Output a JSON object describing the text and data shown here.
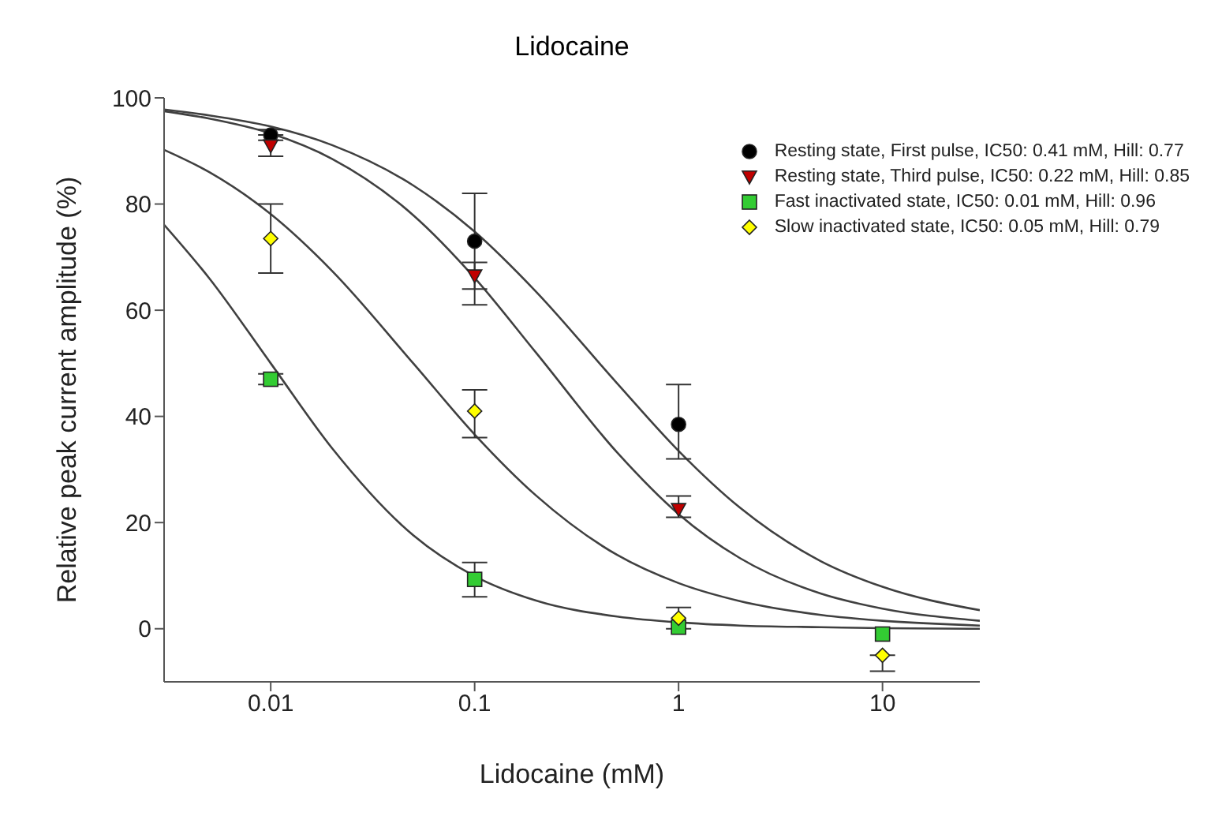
{
  "chart_data": {
    "type": "scatter",
    "title": "Lidocaine",
    "xlabel": "Lidocaine (mM)",
    "ylabel": "Relative peak current amplitude (%)",
    "log": "x",
    "xlim": [
      0.003,
      30
    ],
    "xticks": [
      0.01,
      0.1,
      1,
      10
    ],
    "ylim": [
      -10,
      100
    ],
    "yticks": [
      0,
      20,
      40,
      60,
      80,
      100
    ],
    "legend": "top right",
    "series": [
      {
        "name": "Resting state, First pulse, IC50: 0.41 mM, Hill: 0.77",
        "color": "#000000",
        "marker": "circle",
        "x": [
          0.01,
          0.1,
          1
        ],
        "values": [
          93,
          73,
          38.5
        ],
        "errors": [
          [
            92,
            94
          ],
          [
            64,
            82
          ],
          [
            32,
            46
          ]
        ]
      },
      {
        "name": "Resting state, Third pulse, IC50: 0.22 mM, Hill: 0.85",
        "color": "#c00000",
        "marker": "triangle",
        "x": [
          0.01,
          0.1,
          1
        ],
        "values": [
          91,
          66.5,
          22.5
        ],
        "errors": [
          [
            89,
            93
          ],
          [
            61,
            69
          ],
          [
            21,
            25
          ]
        ]
      },
      {
        "name": "Fast inactivated state, IC50: 0.01 mM, Hill: 0.96",
        "color": "#33cc33",
        "marker": "square",
        "x": [
          0.01,
          0.1,
          1,
          10
        ],
        "values": [
          47,
          9.3,
          0.3,
          -1
        ],
        "errors": [
          [
            46,
            48
          ],
          [
            6,
            12.5
          ],
          null,
          null
        ]
      },
      {
        "name": "Slow inactivated state, IC50: 0.05 mM, Hill: 0.79",
        "color": "#ffff00",
        "marker": "diamond",
        "x": [
          0.01,
          0.1,
          1,
          10
        ],
        "values": [
          73.5,
          41,
          2,
          -5
        ],
        "errors": [
          [
            67,
            80
          ],
          [
            36,
            45
          ],
          [
            0,
            4
          ],
          [
            -8,
            -5
          ]
        ]
      },
      {
        "type": "line",
        "color": "#404040",
        "marker": "none",
        "x": [
          0.003,
          0.005,
          0.01,
          0.02,
          0.05,
          0.1,
          0.2,
          0.5,
          1,
          2,
          5,
          10,
          30
        ],
        "values": [
          97.8,
          96.7,
          94.6,
          91.1,
          83.5,
          74.8,
          63.5,
          46.2,
          33.5,
          22.8,
          12.7,
          7.9,
          3.5
        ]
      },
      {
        "type": "line",
        "color": "#404040",
        "marker": "none",
        "x": [
          0.003,
          0.005,
          0.01,
          0.02,
          0.05,
          0.1,
          0.2,
          0.5,
          1,
          2,
          5,
          10,
          30
        ],
        "values": [
          97.5,
          96.1,
          93.3,
          88.5,
          77.9,
          66.1,
          52.0,
          33.2,
          21.6,
          13.3,
          6.6,
          3.8,
          1.5
        ]
      },
      {
        "type": "line",
        "color": "#404040",
        "marker": "none",
        "x": [
          0.003,
          0.005,
          0.01,
          0.02,
          0.05,
          0.1,
          0.2,
          0.5,
          1,
          2,
          5,
          10,
          30
        ],
        "values": [
          76.1,
          66.0,
          50,
          34.0,
          17.6,
          9.9,
          5.3,
          2.3,
          1.2,
          0.6,
          0.3,
          0.1,
          0.0
        ]
      },
      {
        "type": "line",
        "color": "#404040",
        "marker": "none",
        "x": [
          0.003,
          0.005,
          0.01,
          0.02,
          0.05,
          0.1,
          0.2,
          0.5,
          1,
          2,
          5,
          10,
          30
        ],
        "values": [
          90.2,
          86.0,
          78.1,
          67.4,
          50,
          36.6,
          25.1,
          13.9,
          8.6,
          5.2,
          2.6,
          1.5,
          0.6
        ]
      }
    ]
  }
}
